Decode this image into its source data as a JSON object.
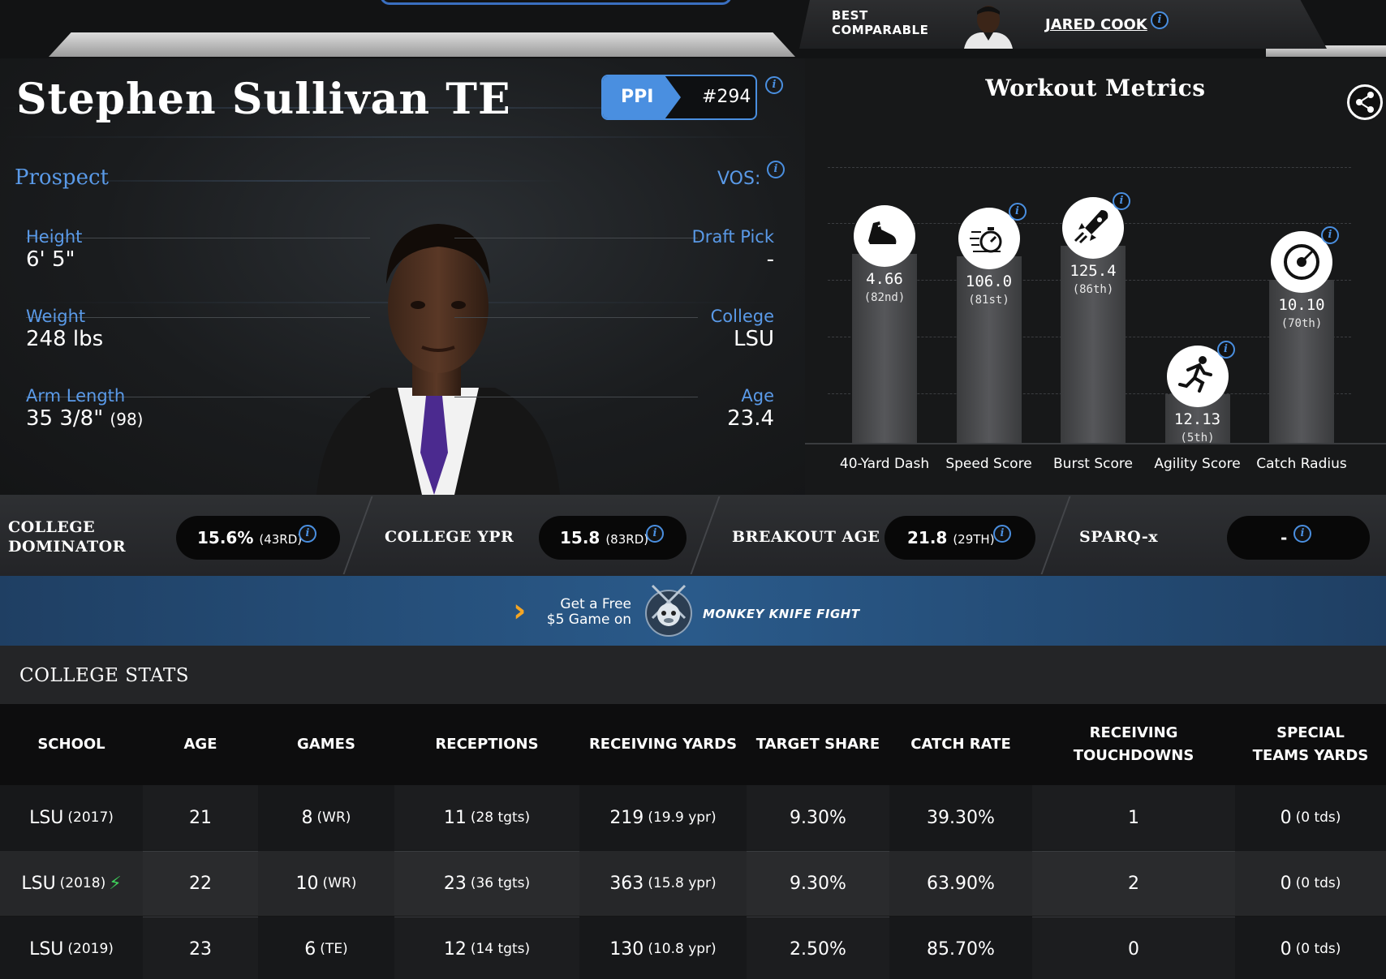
{
  "comparable": {
    "label": "BEST COMPARABLE",
    "name": "JARED COOK"
  },
  "player": {
    "name": "Stephen Sullivan TE",
    "ppi_label": "PPI",
    "ppi_rank": "#294",
    "status": "Prospect",
    "vos_label": "VOS:"
  },
  "left_stats": [
    {
      "label": "Height",
      "value": "6' 5\"",
      "note": ""
    },
    {
      "label": "Weight",
      "value": "248 lbs",
      "note": ""
    },
    {
      "label": "Arm Length",
      "value": "35 3/8\"",
      "note": "(98)"
    }
  ],
  "right_stats": [
    {
      "label": "Draft Pick",
      "value": "-"
    },
    {
      "label": "College",
      "value": "LSU"
    },
    {
      "label": "Age",
      "value": "23.4"
    }
  ],
  "workout": {
    "title": "Workout Metrics",
    "metrics": [
      {
        "name": "40-Yard Dash",
        "value": "4.66",
        "percentile": "(82nd)",
        "pct": 82,
        "icon": "shoe-icon"
      },
      {
        "name": "Speed Score",
        "value": "106.0",
        "percentile": "(81st)",
        "pct": 81,
        "icon": "stopwatch-icon"
      },
      {
        "name": "Burst Score",
        "value": "125.4",
        "percentile": "(86th)",
        "pct": 86,
        "icon": "rocket-icon"
      },
      {
        "name": "Agility Score",
        "value": "12.13",
        "percentile": "(5th)",
        "pct": 5,
        "icon": "runner-icon"
      },
      {
        "name": "Catch Radius",
        "value": "10.10",
        "percentile": "(70th)",
        "pct": 70,
        "icon": "target-icon"
      }
    ]
  },
  "college_metrics": [
    {
      "label": "COLLEGE DOMINATOR",
      "value": "15.6%",
      "rank": "(43RD)"
    },
    {
      "label": "COLLEGE YPR",
      "value": "15.8",
      "rank": "(83RD)"
    },
    {
      "label": "BREAKOUT AGE",
      "value": "21.8",
      "rank": "(29TH)"
    },
    {
      "label": "SPARQ-x",
      "value": "-",
      "rank": ""
    }
  ],
  "ad": {
    "line1": "Get a Free",
    "line2": "$5 Game on",
    "brand": "MONKEY KNIFE FIGHT"
  },
  "college_stats": {
    "title": "COLLEGE STATS",
    "headers": [
      "SCHOOL",
      "AGE",
      "GAMES",
      "RECEPTIONS",
      "RECEIVING YARDS",
      "TARGET SHARE",
      "CATCH RATE",
      "RECEIVING TOUCHDOWNS",
      "SPECIAL TEAMS YARDS"
    ],
    "rows": [
      {
        "school": "LSU",
        "year": "(2017)",
        "age": "21",
        "games": "8",
        "pos": "(WR)",
        "rec": "11",
        "tgts": "(28 tgts)",
        "yds": "219",
        "ypr": "(19.9 ypr)",
        "target_share": "9.30%",
        "catch_rate": "39.30%",
        "td": "1",
        "st_yds": "0",
        "st_tds": "(0 tds)",
        "breakout": false
      },
      {
        "school": "LSU",
        "year": "(2018)",
        "age": "22",
        "games": "10",
        "pos": "(WR)",
        "rec": "23",
        "tgts": "(36 tgts)",
        "yds": "363",
        "ypr": "(15.8 ypr)",
        "target_share": "9.30%",
        "catch_rate": "63.90%",
        "td": "2",
        "st_yds": "0",
        "st_tds": "(0 tds)",
        "breakout": true
      },
      {
        "school": "LSU",
        "year": "(2019)",
        "age": "23",
        "games": "6",
        "pos": "(TE)",
        "rec": "12",
        "tgts": "(14 tgts)",
        "yds": "130",
        "ypr": "(10.8 ypr)",
        "target_share": "2.50%",
        "catch_rate": "85.70%",
        "td": "0",
        "st_yds": "0",
        "st_tds": "(0 tds)",
        "breakout": false
      }
    ]
  },
  "colors": {
    "accent": "#4a8fe0",
    "label_blue": "#5a9ae8",
    "breakout_green": "#3ecf5a",
    "ad_orange": "#f5a623"
  }
}
